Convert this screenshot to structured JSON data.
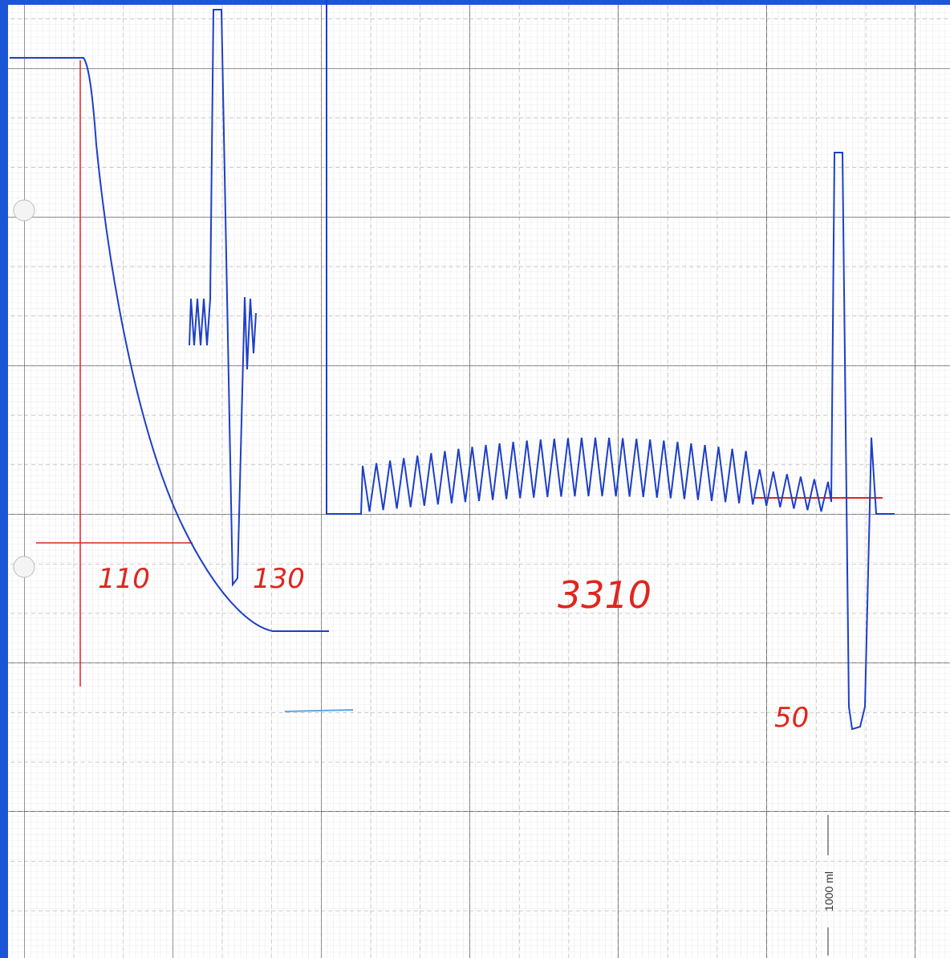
{
  "annotations": {
    "first": "110",
    "second": "130",
    "third": "3310",
    "fourth": "50"
  },
  "scale_label": "1000 ml"
}
